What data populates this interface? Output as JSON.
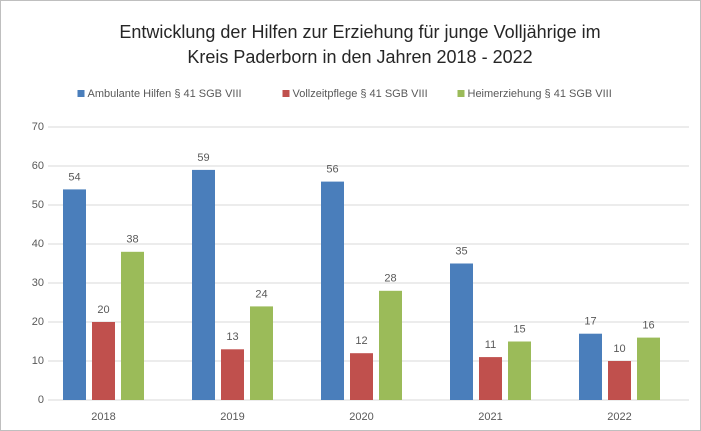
{
  "chart_data": {
    "type": "bar",
    "title": [
      "Entwicklung der Hilfen zur Erziehung für junge Volljährige im",
      "Kreis Paderborn in den Jahren 2018 - 2022"
    ],
    "categories": [
      "2018",
      "2019",
      "2020",
      "2021",
      "2022"
    ],
    "series": [
      {
        "name": "Ambulante Hilfen § 41 SGB VIII",
        "color": "#4a7ebb",
        "values": [
          54,
          59,
          56,
          35,
          17
        ]
      },
      {
        "name": "Vollzeitpflege § 41 SGB VIII",
        "color": "#c0504d",
        "values": [
          20,
          13,
          12,
          11,
          10
        ]
      },
      {
        "name": "Heimerziehung § 41 SGB VIII",
        "color": "#9bbb59",
        "values": [
          38,
          24,
          28,
          15,
          16
        ]
      }
    ],
    "ylim": [
      0,
      70
    ],
    "yticks": [
      0,
      10,
      20,
      30,
      40,
      50,
      60,
      70
    ],
    "grid": true,
    "legend": "top"
  }
}
